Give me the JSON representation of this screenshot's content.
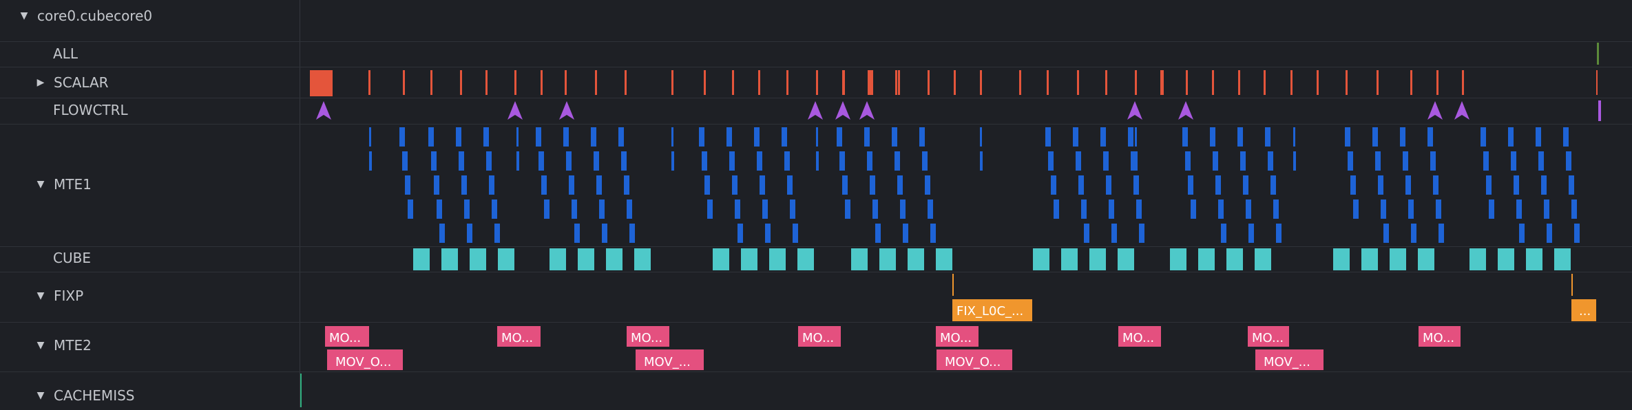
{
  "group": {
    "name": "core0.cubecore0"
  },
  "rows": [
    {
      "key": "all",
      "label": "ALL",
      "toggle": "none"
    },
    {
      "key": "scalar",
      "label": "SCALAR",
      "toggle": "collapsed"
    },
    {
      "key": "flowctrl",
      "label": "FLOWCTRL",
      "toggle": "none"
    },
    {
      "key": "mte1",
      "label": "MTE1",
      "toggle": "expanded"
    },
    {
      "key": "cube",
      "label": "CUBE",
      "toggle": "none"
    },
    {
      "key": "fixp",
      "label": "FIXP",
      "toggle": "expanded"
    },
    {
      "key": "mte2",
      "label": "MTE2",
      "toggle": "expanded"
    },
    {
      "key": "cachemiss",
      "label": "CACHEMISS",
      "toggle": "expanded"
    }
  ],
  "colors": {
    "background": "#1e2025",
    "scalar": "#e4553b",
    "flowctrl": "#a959e0",
    "mte1": "#1e63d6",
    "cube": "#4ec9c9",
    "fixp": "#f0962d",
    "mte2": "#e4507f",
    "all_marker": "#5c8a3a",
    "cachemiss": "#2fae7e"
  },
  "slices": {
    "fixp": [
      {
        "label": "FIX_L0C_..."
      },
      {
        "label": "..."
      }
    ],
    "mte2_top": [
      {
        "label": "MO..."
      },
      {
        "label": "MO..."
      },
      {
        "label": "MO..."
      },
      {
        "label": "MO..."
      },
      {
        "label": "MO..."
      },
      {
        "label": "MO..."
      },
      {
        "label": "MO..."
      },
      {
        "label": "MO..."
      }
    ],
    "mte2_bottom": [
      {
        "label": "MOV_O..."
      },
      {
        "label": "MOV_..."
      },
      {
        "label": "MOV_O..."
      },
      {
        "label": "MOV_..."
      }
    ]
  }
}
